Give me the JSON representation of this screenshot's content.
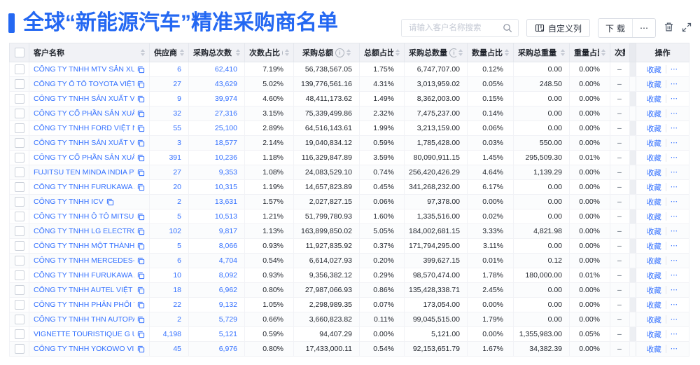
{
  "page": {
    "title": "全球“新能源汽车”精准采购商名单",
    "accent_color": "#2468f2",
    "link_color": "#3370ff"
  },
  "toolbar": {
    "search_placeholder": "请输入客户名称搜索",
    "customize_columns_label": "自定义列",
    "download_label": "下载",
    "more_label": "⋯",
    "icons": [
      "search-icon",
      "columns-icon",
      "trash-icon",
      "expand-icon"
    ]
  },
  "table": {
    "columns": [
      {
        "label": "客户名称",
        "info": false,
        "sort": true
      },
      {
        "label": "供应商",
        "info": true,
        "sort": true
      },
      {
        "label": "采购总次数",
        "info": true,
        "sort": true
      },
      {
        "label": "次数占比",
        "info": true,
        "sort": true
      },
      {
        "label": "采购总额",
        "info": true,
        "sort": true
      },
      {
        "label": "总额占比",
        "info": true,
        "sort": true
      },
      {
        "label": "采购总数量",
        "info": true,
        "sort": true
      },
      {
        "label": "数量占比",
        "info": true,
        "sort": true
      },
      {
        "label": "采购总重量",
        "info": true,
        "sort": true
      },
      {
        "label": "重量占比",
        "info": true,
        "sort": true
      },
      {
        "label": "次数趋势",
        "info": false,
        "sort": false
      }
    ],
    "ops_header": "操作",
    "row_actions": {
      "favorite": "收藏",
      "more": "⋯"
    },
    "rows": [
      {
        "name": "CÔNG TY TNHH MTV SẢN XUẤ...",
        "supplier": "6",
        "total_count": "62,410",
        "count_pct": "7.19%",
        "total_amount": "56,738,567.05",
        "amount_pct": "1.75%",
        "total_qty": "6,747,707.00",
        "qty_pct": "0.12%",
        "total_weight": "0.00",
        "weight_pct": "0.00%",
        "trend": "–"
      },
      {
        "name": "CÔNG TY Ô TÔ TOYOTA VIỆT ...",
        "supplier": "27",
        "total_count": "43,629",
        "count_pct": "5.02%",
        "total_amount": "139,776,561.16",
        "amount_pct": "4.31%",
        "total_qty": "3,013,959.02",
        "qty_pct": "0.05%",
        "total_weight": "248.50",
        "weight_pct": "0.00%",
        "trend": "–"
      },
      {
        "name": "CÔNG TY TNHH SẢN XUẤT VÀ ...",
        "supplier": "9",
        "total_count": "39,974",
        "count_pct": "4.60%",
        "total_amount": "48,411,173.62",
        "amount_pct": "1.49%",
        "total_qty": "8,362,003.00",
        "qty_pct": "0.15%",
        "total_weight": "0.00",
        "weight_pct": "0.00%",
        "trend": "–"
      },
      {
        "name": "CÔNG TY CỔ PHẦN SẢN XUẤT...",
        "supplier": "32",
        "total_count": "27,316",
        "count_pct": "3.15%",
        "total_amount": "75,339,499.86",
        "amount_pct": "2.32%",
        "total_qty": "7,475,237.00",
        "qty_pct": "0.14%",
        "total_weight": "0.00",
        "weight_pct": "0.00%",
        "trend": "–"
      },
      {
        "name": "CÔNG TY TNHH FORD VIỆT NAM",
        "supplier": "55",
        "total_count": "25,100",
        "count_pct": "2.89%",
        "total_amount": "64,516,143.61",
        "amount_pct": "1.99%",
        "total_qty": "3,213,159.00",
        "qty_pct": "0.06%",
        "total_weight": "0.00",
        "weight_pct": "0.00%",
        "trend": "–"
      },
      {
        "name": "CÔNG TY TNHH SẢN XUẤT VÀ ...",
        "supplier": "3",
        "total_count": "18,577",
        "count_pct": "2.14%",
        "total_amount": "19,040,834.12",
        "amount_pct": "0.59%",
        "total_qty": "1,785,428.00",
        "qty_pct": "0.03%",
        "total_weight": "550.00",
        "weight_pct": "0.00%",
        "trend": "–"
      },
      {
        "name": "CÔNG TY CỔ PHẦN SẢN XUẤT...",
        "supplier": "391",
        "total_count": "10,236",
        "count_pct": "1.18%",
        "total_amount": "116,329,847.89",
        "amount_pct": "3.59%",
        "total_qty": "80,090,911.15",
        "qty_pct": "1.45%",
        "total_weight": "295,509.30",
        "weight_pct": "0.01%",
        "trend": "–"
      },
      {
        "name": "FUJITSU TEN MINDA INDIA PVT...",
        "supplier": "27",
        "total_count": "9,353",
        "count_pct": "1.08%",
        "total_amount": "24,083,529.10",
        "amount_pct": "0.74%",
        "total_qty": "256,420,426.29",
        "qty_pct": "4.64%",
        "total_weight": "1,139.29",
        "weight_pct": "0.00%",
        "trend": "–"
      },
      {
        "name": "CÔNG TY TNHH FURUKAWA A...",
        "supplier": "20",
        "total_count": "10,315",
        "count_pct": "1.19%",
        "total_amount": "14,657,823.89",
        "amount_pct": "0.45%",
        "total_qty": "341,268,232.00",
        "qty_pct": "6.17%",
        "total_weight": "0.00",
        "weight_pct": "0.00%",
        "trend": "–"
      },
      {
        "name": "CÔNG TY TNHH ICV",
        "supplier": "2",
        "total_count": "13,631",
        "count_pct": "1.57%",
        "total_amount": "2,027,827.15",
        "amount_pct": "0.06%",
        "total_qty": "97,378.00",
        "qty_pct": "0.00%",
        "total_weight": "0.00",
        "weight_pct": "0.00%",
        "trend": "–"
      },
      {
        "name": "CÔNG TY TNHH Ô TÔ MITSUBI...",
        "supplier": "5",
        "total_count": "10,513",
        "count_pct": "1.21%",
        "total_amount": "51,799,780.93",
        "amount_pct": "1.60%",
        "total_qty": "1,335,516.00",
        "qty_pct": "0.02%",
        "total_weight": "0.00",
        "weight_pct": "0.00%",
        "trend": "–"
      },
      {
        "name": "CÔNG TY TNHH LG ELECTRON...",
        "supplier": "102",
        "total_count": "9,817",
        "count_pct": "1.13%",
        "total_amount": "163,899,850.02",
        "amount_pct": "5.05%",
        "total_qty": "184,002,681.15",
        "qty_pct": "3.33%",
        "total_weight": "4,821.98",
        "weight_pct": "0.00%",
        "trend": "–"
      },
      {
        "name": "CÔNG TY TNHH MỘT THÀNH V...",
        "supplier": "5",
        "total_count": "8,066",
        "count_pct": "0.93%",
        "total_amount": "11,927,835.92",
        "amount_pct": "0.37%",
        "total_qty": "171,794,295.00",
        "qty_pct": "3.11%",
        "total_weight": "0.00",
        "weight_pct": "0.00%",
        "trend": "–"
      },
      {
        "name": "CÔNG TY TNHH MERCEDES-B...",
        "supplier": "6",
        "total_count": "4,704",
        "count_pct": "0.54%",
        "total_amount": "6,614,027.93",
        "amount_pct": "0.20%",
        "total_qty": "399,627.15",
        "qty_pct": "0.01%",
        "total_weight": "0.12",
        "weight_pct": "0.00%",
        "trend": "–"
      },
      {
        "name": "CÔNG TY TNHH FURUKAWA A...",
        "supplier": "10",
        "total_count": "8,092",
        "count_pct": "0.93%",
        "total_amount": "9,356,382.12",
        "amount_pct": "0.29%",
        "total_qty": "98,570,474.00",
        "qty_pct": "1.78%",
        "total_weight": "180,000.00",
        "weight_pct": "0.01%",
        "trend": "–"
      },
      {
        "name": "CÔNG TY TNHH AUTEL VIỆT N...",
        "supplier": "18",
        "total_count": "6,962",
        "count_pct": "0.80%",
        "total_amount": "27,987,066.93",
        "amount_pct": "0.86%",
        "total_qty": "135,428,338.71",
        "qty_pct": "2.45%",
        "total_weight": "0.00",
        "weight_pct": "0.00%",
        "trend": "–"
      },
      {
        "name": "CÔNG TY TNHH PHÂN PHỐI T...",
        "supplier": "22",
        "total_count": "9,132",
        "count_pct": "1.05%",
        "total_amount": "2,298,989.35",
        "amount_pct": "0.07%",
        "total_qty": "173,054.00",
        "qty_pct": "0.00%",
        "total_weight": "0.00",
        "weight_pct": "0.00%",
        "trend": "–"
      },
      {
        "name": "CÔNG TY TNHH THN AUTOPAR...",
        "supplier": "2",
        "total_count": "5,729",
        "count_pct": "0.66%",
        "total_amount": "3,660,823.82",
        "amount_pct": "0.11%",
        "total_qty": "99,045,515.00",
        "qty_pct": "1.79%",
        "total_weight": "0.00",
        "weight_pct": "0.00%",
        "trend": "–"
      },
      {
        "name": "VIGNETTE TOURISTIQUE G UNI...",
        "supplier": "4,198",
        "total_count": "5,121",
        "count_pct": "0.59%",
        "total_amount": "94,407.29",
        "amount_pct": "0.00%",
        "total_qty": "5,121.00",
        "qty_pct": "0.00%",
        "total_weight": "1,355,983.00",
        "weight_pct": "0.05%",
        "trend": "–"
      },
      {
        "name": "CÔNG TY TNHH YOKOWO VIỆT...",
        "supplier": "45",
        "total_count": "6,976",
        "count_pct": "0.80%",
        "total_amount": "17,433,000.11",
        "amount_pct": "0.54%",
        "total_qty": "92,153,651.79",
        "qty_pct": "1.67%",
        "total_weight": "34,382.39",
        "weight_pct": "0.00%",
        "trend": "–"
      }
    ]
  }
}
